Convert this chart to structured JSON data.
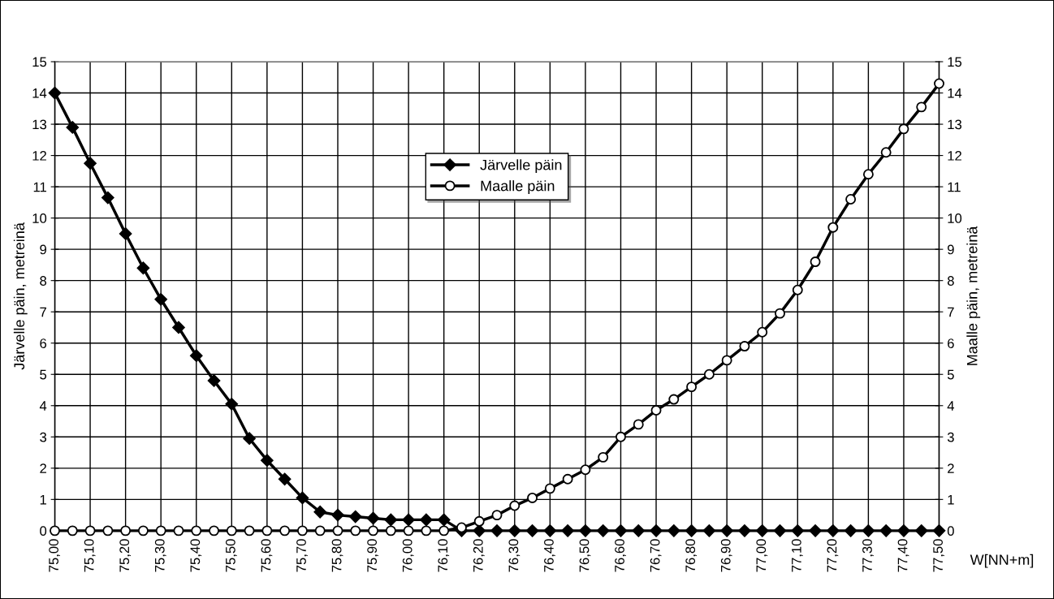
{
  "chart_data": {
    "type": "line",
    "xlabel": "W[NN+m]",
    "ylabel": "Järvelle päin, metreinä",
    "y2label": "Maalle päin, metreinä",
    "x": [
      75.0,
      75.05,
      75.1,
      75.15,
      75.2,
      75.25,
      75.3,
      75.35,
      75.4,
      75.45,
      75.5,
      75.55,
      75.6,
      75.65,
      75.7,
      75.75,
      75.8,
      75.85,
      75.9,
      75.95,
      76.0,
      76.05,
      76.1,
      76.15,
      76.2,
      76.25,
      76.3,
      76.35,
      76.4,
      76.45,
      76.5,
      76.55,
      76.6,
      76.65,
      76.7,
      76.75,
      76.8,
      76.85,
      76.9,
      76.95,
      77.0,
      77.05,
      77.1,
      77.15,
      77.2,
      77.25,
      77.3,
      77.35,
      77.4,
      77.45,
      77.5
    ],
    "series": [
      {
        "name": "Järvelle päin",
        "color": "#000000",
        "marker": "diamond",
        "values": [
          14.0,
          12.9,
          11.75,
          10.65,
          9.5,
          8.4,
          7.4,
          6.5,
          5.6,
          4.8,
          4.05,
          2.95,
          2.25,
          1.65,
          1.05,
          0.6,
          0.5,
          0.45,
          0.4,
          0.35,
          0.35,
          0.35,
          0.35,
          0,
          0,
          0,
          0,
          0,
          0,
          0,
          0,
          0,
          0,
          0,
          0,
          0,
          0,
          0,
          0,
          0,
          0,
          0,
          0,
          0,
          0,
          0,
          0,
          0,
          0,
          0,
          0
        ]
      },
      {
        "name": "Maalle päin",
        "color": "#000000",
        "marker": "circle",
        "axis": "y2",
        "values": [
          0,
          0,
          0,
          0,
          0,
          0,
          0,
          0,
          0,
          0,
          0,
          0,
          0,
          0,
          0,
          0,
          0,
          0,
          0,
          0,
          0,
          0,
          0,
          0.1,
          0.3,
          0.5,
          0.8,
          1.05,
          1.35,
          1.65,
          1.95,
          2.35,
          3.0,
          3.4,
          3.85,
          4.2,
          4.6,
          5.0,
          5.45,
          5.9,
          6.35,
          6.95,
          7.7,
          8.6,
          9.7,
          10.6,
          11.4,
          12.1,
          12.85,
          13.55,
          14.3
        ]
      }
    ],
    "xlim": [
      75.0,
      77.5
    ],
    "xticks": [
      {
        "value": 75.0,
        "label": "75,00"
      },
      {
        "value": 75.1,
        "label": "75,10"
      },
      {
        "value": 75.2,
        "label": "75,20"
      },
      {
        "value": 75.3,
        "label": "75,30"
      },
      {
        "value": 75.4,
        "label": "75,40"
      },
      {
        "value": 75.5,
        "label": "75,50"
      },
      {
        "value": 75.6,
        "label": "75,60"
      },
      {
        "value": 75.7,
        "label": "75,70"
      },
      {
        "value": 75.8,
        "label": "75,80"
      },
      {
        "value": 75.9,
        "label": "75,90"
      },
      {
        "value": 76.0,
        "label": "76,00"
      },
      {
        "value": 76.1,
        "label": "76,10"
      },
      {
        "value": 76.2,
        "label": "76,20"
      },
      {
        "value": 76.3,
        "label": "76,30"
      },
      {
        "value": 76.4,
        "label": "76,40"
      },
      {
        "value": 76.5,
        "label": "76,50"
      },
      {
        "value": 76.6,
        "label": "76,60"
      },
      {
        "value": 76.7,
        "label": "76,70"
      },
      {
        "value": 76.8,
        "label": "76,80"
      },
      {
        "value": 76.9,
        "label": "76,90"
      },
      {
        "value": 77.0,
        "label": "77,00"
      },
      {
        "value": 77.1,
        "label": "77,10"
      },
      {
        "value": 77.2,
        "label": "77,20"
      },
      {
        "value": 77.3,
        "label": "77,30"
      },
      {
        "value": 77.4,
        "label": "77,40"
      },
      {
        "value": 77.5,
        "label": "77,50"
      }
    ],
    "ylim": [
      0,
      15
    ],
    "yticks": [
      0,
      1,
      2,
      3,
      4,
      5,
      6,
      7,
      8,
      9,
      10,
      11,
      12,
      13,
      14,
      15
    ],
    "y2lim": [
      0,
      15
    ],
    "y2ticks": [
      0,
      1,
      2,
      3,
      4,
      5,
      6,
      7,
      8,
      9,
      10,
      11,
      12,
      13,
      14,
      15
    ],
    "grid": true,
    "legend": "top",
    "line_style": "solid"
  }
}
